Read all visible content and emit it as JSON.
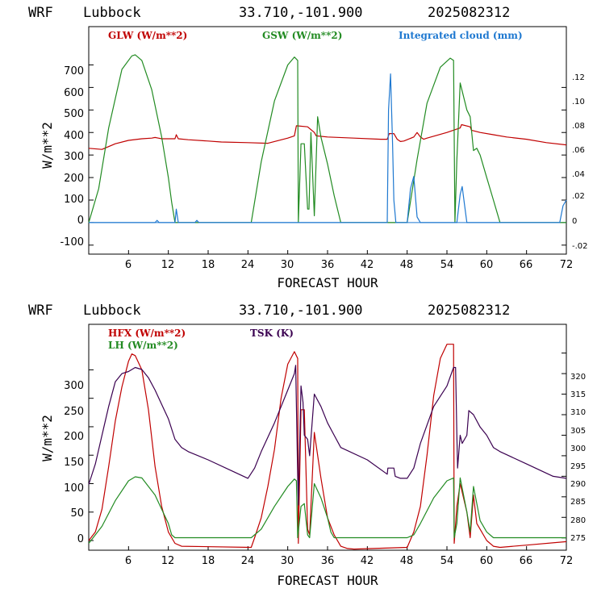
{
  "panels": [
    {
      "header": {
        "model": "WRF",
        "station": "Lubbock",
        "coords": "33.710,-101.900",
        "run": "2025082312"
      },
      "xlabel": "FORECAST HOUR",
      "ylabel": "W/m**2",
      "legend": [
        {
          "label": "GLW (W/m**2)",
          "color": "#c00000"
        },
        {
          "label": "GSW (W/m**2)",
          "color": "#228b22"
        },
        {
          "label": "Integrated cloud (mm)",
          "color": "#1e78d0"
        }
      ],
      "left_ticks": [
        "-100",
        "0",
        "100",
        "200",
        "300",
        "400",
        "500",
        "600",
        "700"
      ],
      "right_ticks": [
        "-.02",
        "0",
        ".02",
        ".04",
        ".06",
        ".08",
        ".10",
        ".12"
      ],
      "x_ticks": [
        "6",
        "12",
        "18",
        "24",
        "30",
        "36",
        "42",
        "48",
        "54",
        "60",
        "66",
        "72"
      ]
    },
    {
      "header": {
        "model": "WRF",
        "station": "Lubbock",
        "coords": "33.710,-101.900",
        "run": "2025082312"
      },
      "xlabel": "FORECAST HOUR",
      "ylabel": "W/m**2",
      "legend": [
        {
          "label": "HFX (W/m**2)",
          "color": "#c00000"
        },
        {
          "label": "LH  (W/m**2)",
          "color": "#228b22"
        },
        {
          "label": "TSK (K)",
          "color": "#3a0050"
        }
      ],
      "left_ticks": [
        "0",
        "50",
        "100",
        "150",
        "200",
        "250",
        "300"
      ],
      "right_ticks": [
        "275",
        "280",
        "285",
        "290",
        "295",
        "300",
        "305",
        "310",
        "315",
        "320"
      ],
      "x_ticks": [
        "6",
        "12",
        "18",
        "24",
        "30",
        "36",
        "42",
        "48",
        "54",
        "60",
        "66",
        "72"
      ]
    }
  ],
  "chart_data": [
    {
      "type": "line",
      "title": "WRF Lubbock 33.710,-101.900 2025082312",
      "xlabel": "FORECAST HOUR",
      "ylabel": "W/m**2",
      "xlim": [
        0,
        72
      ],
      "ylim": [
        -140,
        870
      ],
      "y2lim": [
        -0.028,
        0.174
      ],
      "grid": false,
      "legend_position": "top",
      "series": [
        {
          "name": "GLW (W/m**2)",
          "axis": "left",
          "color": "#c00000",
          "x": [
            0,
            2,
            4,
            6,
            8,
            9.5,
            10,
            10.5,
            11,
            13,
            13.2,
            13.5,
            15,
            18,
            20,
            24,
            27,
            30,
            31,
            31.3,
            33,
            34,
            34.3,
            36,
            40,
            44,
            45,
            45.3,
            46,
            46.5,
            47,
            47.5,
            49,
            49.5,
            50,
            50.5,
            51,
            54,
            56,
            56.2,
            57.5,
            57.7,
            59,
            61,
            63,
            66,
            69,
            72
          ],
          "y": [
            330,
            325,
            350,
            365,
            372,
            375,
            378,
            375,
            372,
            372,
            390,
            372,
            368,
            362,
            358,
            355,
            352,
            375,
            385,
            430,
            425,
            400,
            385,
            380,
            375,
            370,
            370,
            395,
            395,
            370,
            360,
            362,
            380,
            400,
            380,
            370,
            375,
            400,
            420,
            435,
            425,
            410,
            400,
            390,
            380,
            370,
            355,
            345
          ]
        },
        {
          "name": "GSW (W/m**2)",
          "axis": "left",
          "color": "#228b22",
          "x": [
            0,
            1.5,
            3,
            5,
            6.5,
            7,
            8,
            9.5,
            11,
            12,
            12.5,
            13,
            13.2,
            24.5,
            26,
            28,
            30,
            31,
            31.5,
            31.6,
            32,
            32.5,
            33,
            33.2,
            33.5,
            34,
            34.5,
            35,
            36,
            37,
            38,
            48,
            49.5,
            51,
            53,
            54.5,
            55,
            55.2,
            55.5,
            56,
            57,
            57.5,
            58,
            58.5,
            59,
            60,
            61,
            62,
            72
          ],
          "y": [
            0,
            150,
            420,
            680,
            740,
            745,
            720,
            590,
            380,
            200,
            90,
            0,
            0,
            0,
            270,
            540,
            700,
            735,
            720,
            0,
            350,
            350,
            60,
            60,
            400,
            30,
            470,
            380,
            260,
            120,
            0,
            0,
            280,
            530,
            690,
            730,
            720,
            0,
            280,
            620,
            500,
            470,
            320,
            330,
            300,
            200,
            100,
            0,
            0
          ]
        },
        {
          "name": "Integrated cloud (mm)",
          "axis": "right",
          "color": "#1e78d0",
          "x": [
            0,
            10,
            10.3,
            10.6,
            13,
            13.2,
            13.5,
            16,
            16.3,
            16.6,
            45,
            45.2,
            45.5,
            45.8,
            46,
            46.3,
            48,
            48.5,
            49,
            49.5,
            50,
            55.5,
            56,
            56.3,
            56.6,
            57,
            71,
            71.5,
            72
          ],
          "y": [
            0,
            0,
            0.002,
            0,
            0,
            0.012,
            0,
            0,
            0.002,
            0,
            0,
            0.1,
            0.132,
            0.07,
            0.02,
            0,
            0,
            0.03,
            0.041,
            0.005,
            0,
            0,
            0.025,
            0.032,
            0.018,
            0,
            0,
            0.015,
            0.02
          ]
        }
      ]
    },
    {
      "type": "line",
      "title": "WRF Lubbock 33.710,-101.900 2025082312",
      "xlabel": "FORECAST HOUR",
      "ylabel": "W/m**2",
      "xlim": [
        0,
        72
      ],
      "ylim": [
        -17,
        380
      ],
      "y2lim": [
        272,
        327
      ],
      "grid": false,
      "legend_position": "top-left",
      "series": [
        {
          "name": "HFX (W/m**2)",
          "axis": "left",
          "color": "#c00000",
          "x": [
            0,
            1,
            2,
            3,
            4,
            5,
            6,
            6.5,
            7,
            8,
            9,
            10,
            11,
            12,
            13,
            14,
            24.5,
            25,
            26,
            27,
            28,
            29,
            30,
            31,
            31.5,
            31.6,
            32,
            32.5,
            33,
            33.3,
            34,
            35,
            36,
            37,
            38,
            39,
            40,
            48,
            49,
            50,
            51,
            52,
            53,
            54,
            55,
            55.1,
            55.5,
            56,
            57,
            57.5,
            58,
            58.5,
            59,
            60,
            61,
            62,
            66,
            72
          ],
          "y": [
            0,
            15,
            55,
            130,
            210,
            270,
            315,
            328,
            325,
            300,
            230,
            130,
            60,
            15,
            -5,
            -10,
            -12,
            5,
            40,
            95,
            160,
            250,
            310,
            332,
            320,
            -5,
            230,
            230,
            20,
            10,
            190,
            110,
            40,
            10,
            -10,
            -14,
            -15,
            -12,
            15,
            60,
            150,
            255,
            320,
            345,
            345,
            -5,
            60,
            100,
            50,
            5,
            80,
            30,
            20,
            0,
            -10,
            -12,
            -8,
            -2
          ]
        },
        {
          "name": "LH  (W/m**2)",
          "axis": "left",
          "color": "#228b22",
          "x": [
            0,
            2,
            4,
            6,
            7,
            8,
            10,
            11,
            12,
            12.5,
            13,
            24.5,
            26,
            28,
            30,
            31,
            31.3,
            31.5,
            32,
            32.5,
            33,
            33.3,
            34,
            35,
            36,
            36.5,
            37,
            48,
            49,
            50,
            52,
            54,
            55,
            55.1,
            55.5,
            56,
            57,
            57.5,
            58,
            59,
            60,
            61,
            72
          ],
          "y": [
            -5,
            25,
            70,
            105,
            112,
            110,
            80,
            55,
            30,
            10,
            5,
            5,
            20,
            60,
            95,
            108,
            105,
            5,
            60,
            65,
            10,
            5,
            100,
            75,
            40,
            15,
            5,
            5,
            10,
            30,
            75,
            105,
            110,
            5,
            30,
            110,
            50,
            15,
            95,
            35,
            15,
            5,
            5
          ]
        },
        {
          "name": "TSK (K)",
          "axis": "right",
          "color": "#3a0050",
          "x": [
            0,
            1,
            2,
            3,
            4,
            5,
            6,
            7,
            8,
            9,
            10,
            11,
            12,
            13,
            14,
            15,
            18,
            22,
            24,
            25,
            26,
            28,
            30,
            31,
            31.2,
            31.5,
            31.6,
            32,
            32.3,
            32.5,
            33,
            33.3,
            34,
            35,
            36,
            37,
            38,
            42,
            45,
            45.1,
            46,
            46.2,
            47,
            48,
            49,
            50,
            52,
            54,
            55,
            55.3,
            55.5,
            55.6,
            56,
            56.3,
            57,
            57.3,
            58,
            59,
            60,
            61,
            62,
            66,
            70,
            72
          ],
          "y": [
            288,
            293,
            300,
            307,
            313,
            315,
            315.5,
            316.5,
            316,
            314,
            311,
            307.5,
            304,
            299,
            297,
            296,
            294,
            291,
            289.5,
            292,
            296,
            303,
            311,
            315,
            317,
            290,
            283,
            312,
            308,
            300,
            299,
            295,
            310,
            307,
            303,
            300,
            297,
            294,
            290.5,
            292,
            292,
            290,
            289.5,
            289.5,
            292,
            298,
            307,
            312,
            316.5,
            316.5,
            300,
            292,
            300,
            298,
            300,
            306,
            305,
            302,
            300,
            297,
            296,
            293,
            290,
            289.5
          ]
        }
      ]
    }
  ]
}
